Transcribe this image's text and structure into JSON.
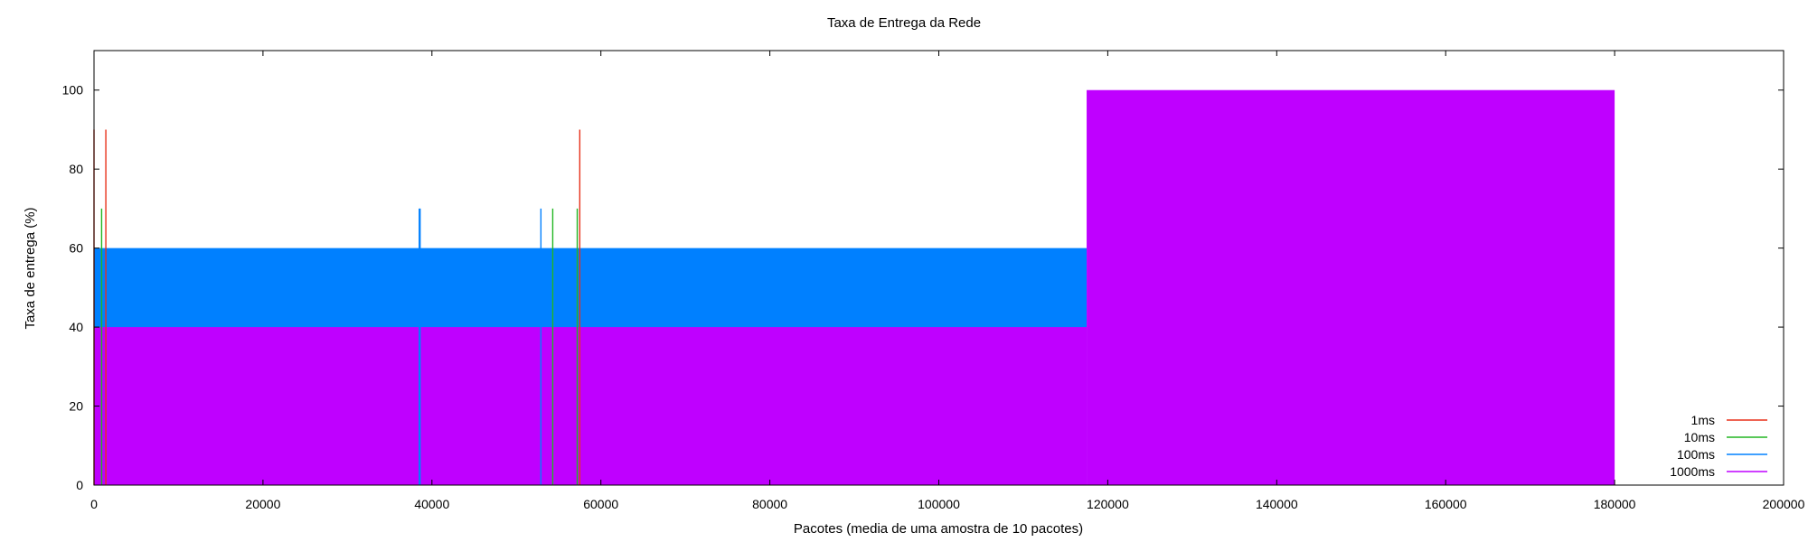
{
  "chart_data": {
    "type": "area",
    "title": "Taxa de Entrega da Rede",
    "xlabel": "Pacotes (media de uma amostra de 10 pacotes)",
    "ylabel": "Taxa de entrega (%)",
    "xlim": [
      0,
      200000
    ],
    "ylim": [
      0,
      110
    ],
    "xticks": [
      0,
      20000,
      40000,
      60000,
      80000,
      100000,
      120000,
      140000,
      160000,
      180000,
      200000
    ],
    "yticks": [
      0,
      20,
      40,
      60,
      80,
      100
    ],
    "grid": false,
    "legend_position": "bottom-right",
    "series": [
      {
        "name": "1ms",
        "color": "#e8311a",
        "style": "spikes",
        "spikes": [
          {
            "x": 0,
            "y": 90
          },
          {
            "x": 1400,
            "y": 90
          },
          {
            "x": 57500,
            "y": 90
          }
        ]
      },
      {
        "name": "10ms",
        "color": "#22b622",
        "style": "spikes",
        "spikes": [
          {
            "x": 900,
            "y": 70
          },
          {
            "x": 54300,
            "y": 70
          },
          {
            "x": 57200,
            "y": 70
          }
        ]
      },
      {
        "name": "100ms",
        "color": "#0080ff",
        "style": "fill",
        "segments": [
          {
            "x0": 0,
            "x1": 117500,
            "y": 60
          }
        ],
        "spikes": [
          {
            "x": 38500,
            "y": 70
          },
          {
            "x": 38600,
            "y": 70
          },
          {
            "x": 52900,
            "y": 70
          }
        ]
      },
      {
        "name": "1000ms",
        "color": "#bf00ff",
        "style": "fill",
        "segments": [
          {
            "x0": 0,
            "x1": 117500,
            "y": 40
          },
          {
            "x0": 117500,
            "x1": 180000,
            "y": 100
          }
        ]
      }
    ]
  }
}
